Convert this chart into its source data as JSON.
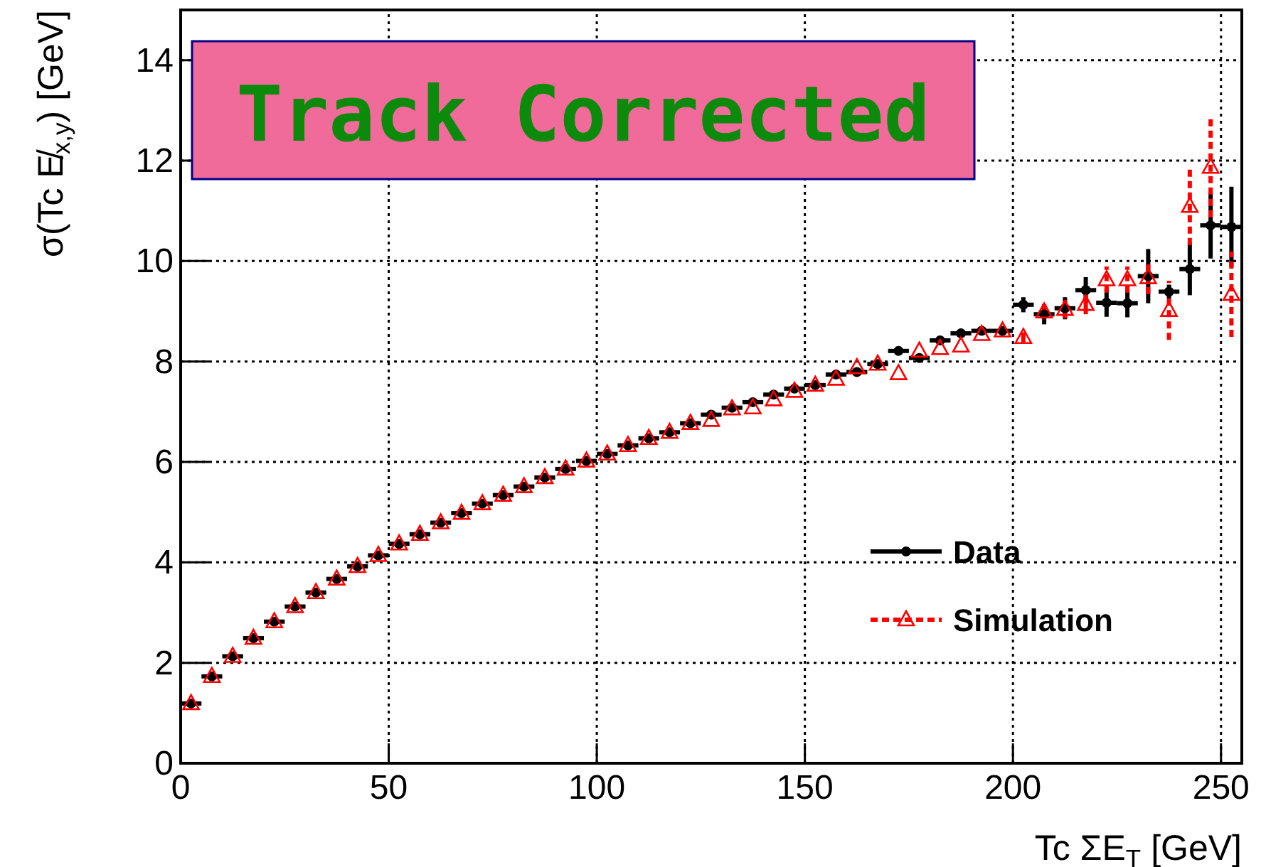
{
  "chart_data": {
    "type": "scatter",
    "xlabel": "Tc ΣE$_{T}$ [GeV]",
    "ylabel": "σ(Tc E̸$_{x,y}$) [GeV]",
    "annotations": [
      "Track Corrected"
    ],
    "x": [
      2.5,
      7.5,
      12.5,
      17.5,
      22.5,
      27.5,
      32.5,
      37.5,
      42.5,
      47.5,
      52.5,
      57.5,
      62.5,
      67.5,
      72.5,
      77.5,
      82.5,
      87.5,
      92.5,
      97.5,
      102.5,
      107.5,
      112.5,
      117.5,
      122.5,
      127.5,
      132.5,
      137.5,
      142.5,
      147.5,
      152.5,
      157.5,
      162.5,
      167.5,
      172.5,
      177.5,
      182.5,
      187.5,
      192.5,
      197.5,
      202.5,
      207.5,
      212.5,
      217.5,
      222.5,
      227.5,
      232.5,
      237.5,
      242.5,
      247.5,
      252.5
    ],
    "xlim": [
      0,
      255
    ],
    "ylim": [
      0,
      15
    ],
    "xticks": [
      0,
      50,
      100,
      150,
      200,
      250
    ],
    "yticks": [
      0,
      2,
      4,
      6,
      8,
      10,
      12,
      14
    ],
    "grid": true,
    "legend": "bottom right",
    "series": [
      {
        "name": "Data",
        "color": "#000000",
        "marker": "circle",
        "line_style": "solid",
        "values": [
          1.19,
          1.73,
          2.13,
          2.49,
          2.82,
          3.12,
          3.4,
          3.67,
          3.92,
          4.14,
          4.37,
          4.56,
          4.79,
          4.98,
          5.17,
          5.34,
          5.51,
          5.69,
          5.86,
          6.02,
          6.16,
          6.33,
          6.47,
          6.59,
          6.77,
          6.94,
          7.08,
          7.19,
          7.34,
          7.46,
          7.53,
          7.74,
          7.79,
          7.95,
          8.21,
          8.07,
          8.42,
          8.56,
          8.61,
          8.61,
          9.13,
          8.94,
          9.06,
          9.42,
          9.17,
          9.16,
          9.7,
          9.39,
          9.84,
          10.71,
          10.68
        ],
        "errors": [
          null,
          null,
          null,
          null,
          null,
          null,
          null,
          null,
          null,
          null,
          null,
          null,
          null,
          null,
          null,
          null,
          null,
          null,
          null,
          null,
          null,
          null,
          null,
          null,
          null,
          null,
          null,
          null,
          null,
          null,
          null,
          null,
          null,
          null,
          null,
          null,
          null,
          null,
          null,
          null,
          0.15,
          0.2,
          0.22,
          0.26,
          0.28,
          0.28,
          0.54,
          0.14,
          0.52,
          0.66,
          0.8
        ],
        "xerrors": [
          2.5,
          2.5,
          2.5,
          2.5,
          2.5,
          2.5,
          2.5,
          2.5,
          2.5,
          2.5,
          2.5,
          2.5,
          2.5,
          2.5,
          2.5,
          2.5,
          2.5,
          2.5,
          2.5,
          2.5,
          2.5,
          2.5,
          2.5,
          2.5,
          2.5,
          2.5,
          2.5,
          2.5,
          2.5,
          2.5,
          2.5,
          2.5,
          2.5,
          2.5,
          2.5,
          2.5,
          2.5,
          2.5,
          2.5,
          2.5,
          2.5,
          2.5,
          2.5,
          2.5,
          2.5,
          2.5,
          2.5,
          2.5,
          2.5,
          2.5,
          2.5
        ]
      },
      {
        "name": "Simulation",
        "color": "#ff0000",
        "marker": "triangle",
        "line_style": "dashed",
        "values": [
          1.19,
          1.73,
          2.13,
          2.49,
          2.82,
          3.12,
          3.4,
          3.67,
          3.92,
          4.14,
          4.37,
          4.56,
          4.79,
          4.98,
          5.17,
          5.34,
          5.51,
          5.69,
          5.86,
          6.02,
          6.16,
          6.33,
          6.47,
          6.59,
          6.77,
          6.83,
          7.06,
          7.08,
          7.24,
          7.41,
          7.53,
          7.65,
          7.88,
          7.95,
          7.76,
          8.21,
          8.26,
          8.31,
          8.54,
          8.61,
          8.48,
          8.99,
          9.04,
          9.14,
          9.63,
          9.63,
          9.67,
          9.02,
          11.09,
          11.87,
          9.34
        ],
        "errors": [
          null,
          null,
          null,
          null,
          null,
          null,
          null,
          null,
          null,
          null,
          null,
          null,
          null,
          null,
          null,
          null,
          null,
          null,
          null,
          null,
          null,
          null,
          null,
          null,
          null,
          null,
          null,
          null,
          null,
          null,
          null,
          null,
          null,
          null,
          null,
          null,
          null,
          null,
          null,
          null,
          0.1,
          0.15,
          0.18,
          0.2,
          0.26,
          0.26,
          0.33,
          0.59,
          0.77,
          1.0,
          0.85
        ]
      }
    ]
  }
}
